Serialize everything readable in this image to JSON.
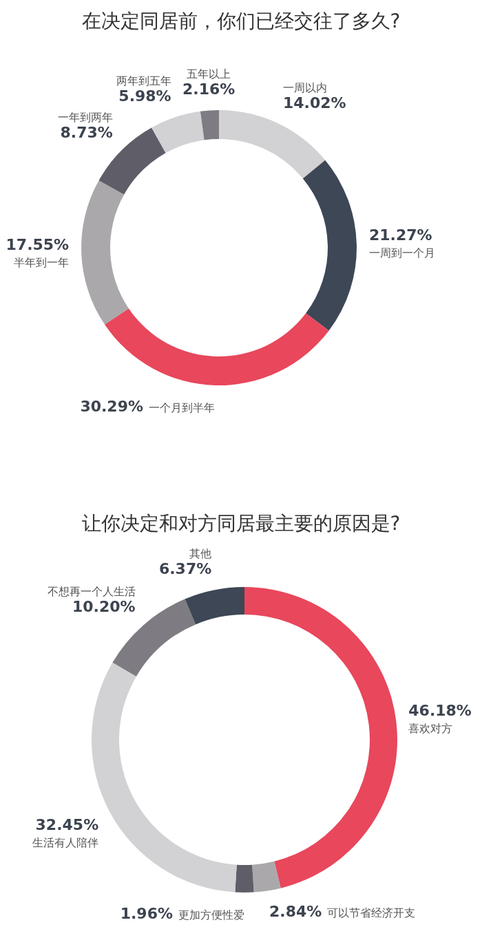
{
  "chart_data": [
    {
      "type": "donut",
      "title": "在决定同居前，你们已经交往了多久?",
      "categories": [
        "一周以内",
        "一周到一个月",
        "一个月到半年",
        "半年到一年",
        "一年到两年",
        "两年到五年",
        "五年以上"
      ],
      "values": [
        14.02,
        21.27,
        30.29,
        17.55,
        8.73,
        5.98,
        2.16
      ],
      "value_labels": [
        "14.02%",
        "21.27%",
        "30.29%",
        "17.55%",
        "8.73%",
        "5.98%",
        "2.16%"
      ],
      "colors": [
        "#d2d1d3",
        "#3d4756",
        "#e8475c",
        "#aba8ac",
        "#5f5e68",
        "#d2d1d3",
        "#7e7c82"
      ]
    },
    {
      "type": "donut",
      "title": "让你决定和对方同居最主要的原因是?",
      "categories": [
        "喜欢对方",
        "可以节省经济开支",
        "更加方便性爱",
        "生活有人陪伴",
        "不想再一个人生活",
        "其他"
      ],
      "values": [
        46.18,
        2.84,
        1.96,
        32.45,
        10.2,
        6.37
      ],
      "value_labels": [
        "46.18%",
        "2.84%",
        "1.96%",
        "32.45%",
        "10.20%",
        "6.37%"
      ],
      "colors": [
        "#e8475c",
        "#aba8ac",
        "#5f5e68",
        "#d2d1d3",
        "#7e7c82",
        "#3d4756"
      ]
    }
  ]
}
